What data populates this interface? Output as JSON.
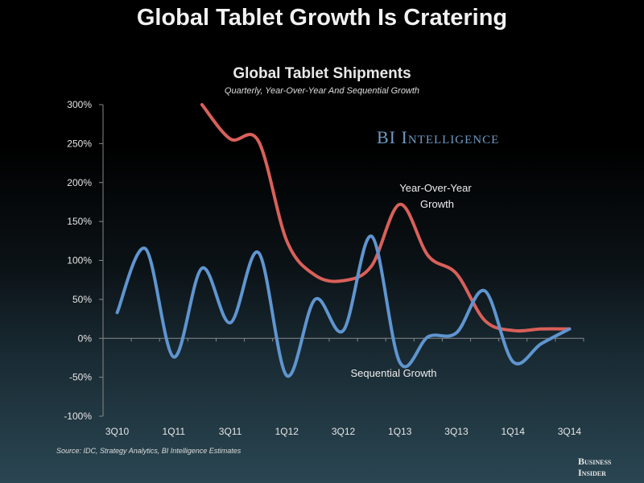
{
  "header": {
    "title": "Global Tablet Growth Is Cratering",
    "brand": "BI Intelligence",
    "source": "Source: IDC, Strategy Analytics, BI Intelligence Estimates",
    "logo_line1": "Business",
    "logo_line2": "Insider"
  },
  "chart_data": {
    "type": "line",
    "title": "Global Tablet Shipments",
    "subtitle": "Quarterly, Year-Over-Year And Sequential Growth",
    "xlabel": "",
    "ylabel": "",
    "ylim": [
      -100,
      300
    ],
    "yticks": [
      -100,
      -50,
      0,
      50,
      100,
      150,
      200,
      250,
      300
    ],
    "ytick_labels": [
      "-100%",
      "-50%",
      "0%",
      "50%",
      "100%",
      "150%",
      "200%",
      "250%",
      "300%"
    ],
    "x": [
      "3Q10",
      "4Q10",
      "1Q11",
      "2Q11",
      "3Q11",
      "4Q11",
      "1Q12",
      "2Q12",
      "3Q12",
      "4Q12",
      "1Q13",
      "2Q13",
      "3Q13",
      "4Q13",
      "1Q14",
      "2Q14",
      "3Q14"
    ],
    "xtick_labels": [
      "3Q10",
      "1Q11",
      "3Q11",
      "1Q12",
      "3Q12",
      "1Q13",
      "3Q13",
      "1Q14",
      "3Q14"
    ],
    "grid": false,
    "series": [
      {
        "name": "Year-Over-Year Growth",
        "color": "#d9605a",
        "values": [
          null,
          null,
          null,
          300,
          256,
          253,
          125,
          81,
          74,
          93,
          172,
          106,
          83,
          23,
          10,
          12,
          12
        ]
      },
      {
        "name": "Sequential Growth",
        "color": "#5f95d0",
        "values": [
          33,
          115,
          -24,
          90,
          20,
          110,
          -48,
          50,
          10,
          131,
          -31,
          2,
          7,
          61,
          -30,
          -7,
          12
        ]
      }
    ],
    "annotations": [
      {
        "text_line1": "Year-Over-Year",
        "text_line2": "Growth",
        "series": "Year-Over-Year Growth"
      },
      {
        "text_line1": "Sequential Growth",
        "series": "Sequential Growth"
      }
    ]
  }
}
